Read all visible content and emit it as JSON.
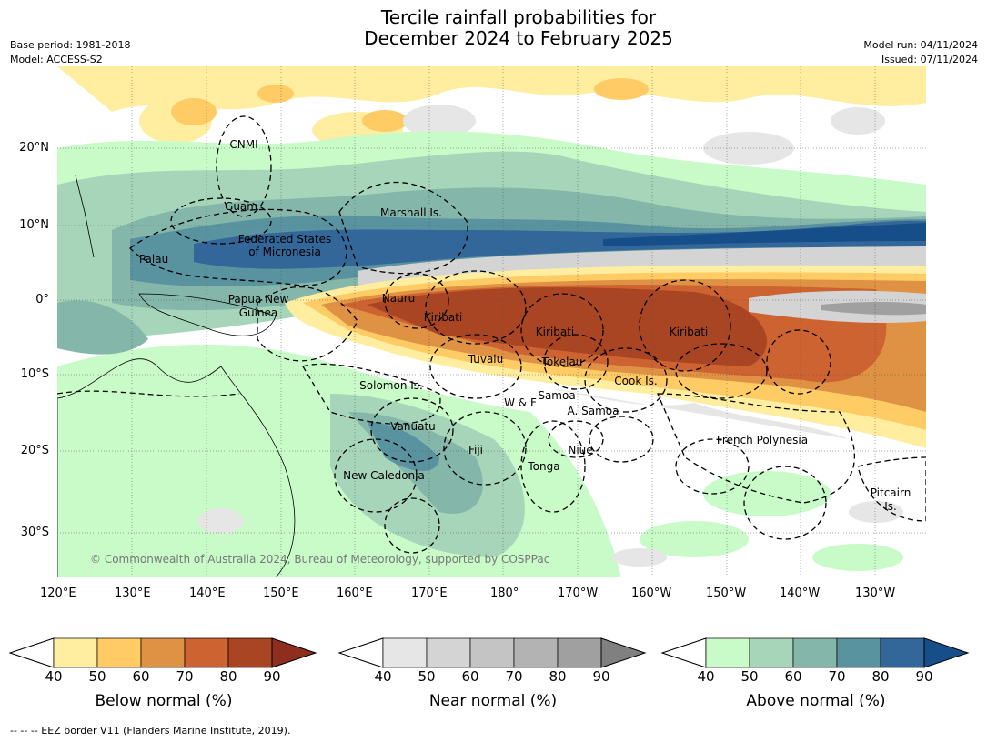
{
  "header": {
    "title_line1": "Tercile rainfall probabilities for",
    "title_line2": "December 2024 to February 2025",
    "base_period": "Base period: 1981-2018",
    "model": "Model: ACCESS-S2",
    "model_run": "Model run: 04/11/2024",
    "issued": "Issued: 07/11/2024"
  },
  "axes": {
    "lon_ticks": [
      "120°E",
      "130°E",
      "140°E",
      "150°E",
      "160°E",
      "170°E",
      "180°",
      "170°W",
      "160°W",
      "150°W",
      "140°W",
      "130°W"
    ],
    "lat_ticks": [
      "20°N",
      "10°N",
      "0°",
      "10°S",
      "20°S",
      "30°S"
    ]
  },
  "map": {
    "labels": [
      "CNMI",
      "Guam",
      "Marshall Is.",
      "Federated States",
      "of Micronesia",
      "Palau",
      "Papua New",
      "Guinea",
      "Nauru",
      "Kiribati",
      "Kiribati",
      "Kiribati",
      "Tuvalu",
      "Tokelau",
      "Cook Is.",
      "Solomon Is.",
      "W & F",
      "Samoa",
      "A. Samoa",
      "Vanuatu",
      "Fiji",
      "Niue",
      "Tonga",
      "French Polynesia",
      "New Caledonia",
      "Pitcairn",
      "Is."
    ],
    "copyright": "© Commonwealth of Australia 2024, Bureau of Meteorology, supported by COSPPac"
  },
  "colorbars": [
    {
      "title": "Below normal (%)",
      "ticks": [
        "40",
        "50",
        "60",
        "70",
        "80",
        "90"
      ],
      "colors": [
        "#FFEDA0",
        "#FECB65",
        "#E09244",
        "#CC6330",
        "#AA4524",
        "#8E2E1E"
      ]
    },
    {
      "title": "Near normal (%)",
      "ticks": [
        "40",
        "50",
        "60",
        "70",
        "80",
        "90"
      ],
      "colors": [
        "#E6E6E6",
        "#D4D4D4",
        "#C4C4C4",
        "#B3B3B3",
        "#A0A0A0",
        "#808080"
      ]
    },
    {
      "title": "Above normal (%)",
      "ticks": [
        "40",
        "50",
        "60",
        "70",
        "80",
        "90"
      ],
      "colors": [
        "#C9FBC9",
        "#A6D5B9",
        "#84B7AA",
        "#5A93A0",
        "#336699",
        "#164E89"
      ]
    }
  ],
  "footer": {
    "eez_note": "--  --  -- EEZ border V11 (Flanders Marine Institute, 2019)."
  }
}
